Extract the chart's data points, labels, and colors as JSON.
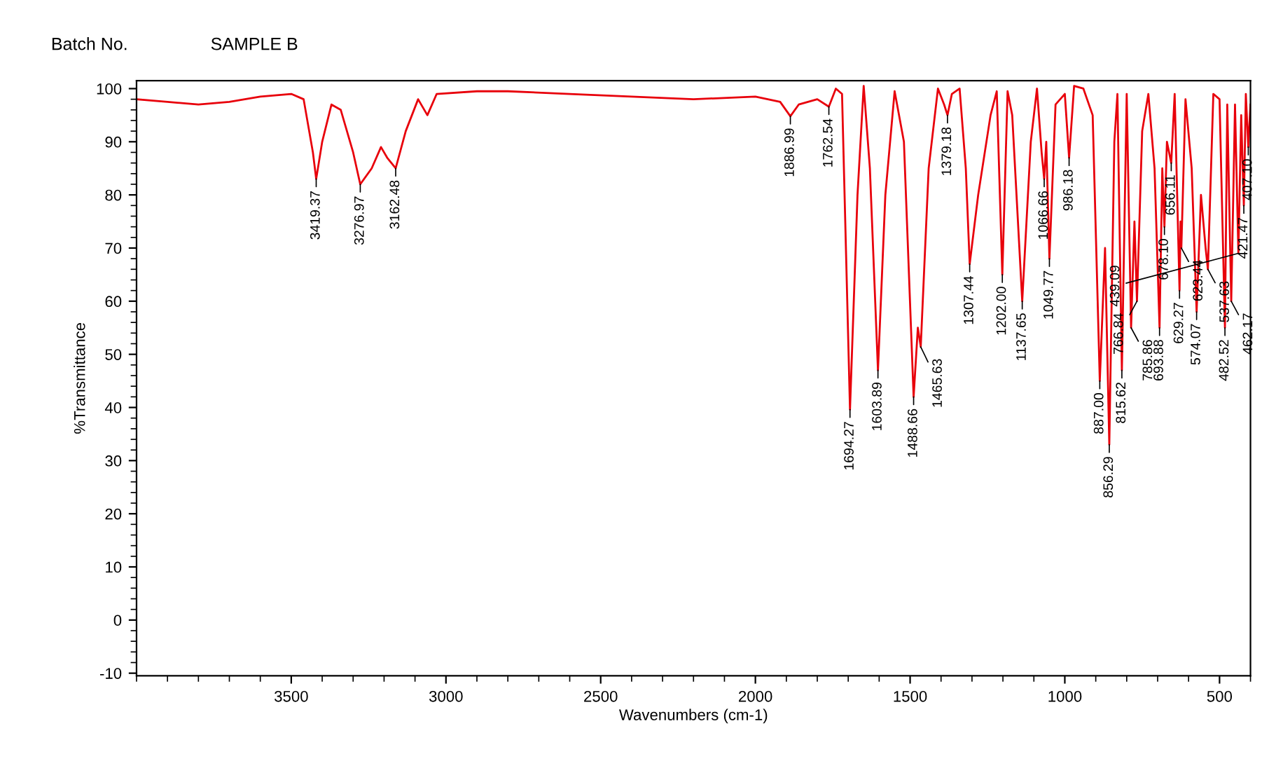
{
  "chart_data": {
    "type": "line",
    "title": "SAMPLE B",
    "xlabel": "Wavenumbers (cm-1)",
    "ylabel": "%Transmittance",
    "xlim": [
      4000,
      400
    ],
    "xticks": [
      3500,
      3000,
      2500,
      2000,
      1500,
      1000,
      500
    ],
    "ylim": [
      -10.5,
      101.5
    ],
    "yticks": [
      -10,
      0,
      10,
      20,
      30,
      40,
      50,
      60,
      70,
      80,
      90,
      100
    ],
    "grid": false,
    "legend": false,
    "line_style": "solid",
    "marker": "none",
    "series": [
      {
        "color": "#e8000b",
        "x": [
          4000,
          3900,
          3800,
          3700,
          3600,
          3500,
          3460,
          3430,
          3419.37,
          3400,
          3370,
          3340,
          3300,
          3276.97,
          3240,
          3210,
          3190,
          3162.48,
          3130,
          3090,
          3060,
          3030,
          2900,
          2800,
          2600,
          2400,
          2200,
          2000,
          1920,
          1886.99,
          1860,
          1800,
          1762.54,
          1740,
          1720,
          1694.27,
          1670,
          1650,
          1630,
          1603.89,
          1580,
          1550,
          1520,
          1488.66,
          1475,
          1465.63,
          1440,
          1410,
          1390,
          1379.18,
          1365,
          1340,
          1320,
          1307.44,
          1280,
          1240,
          1220,
          1202.0,
          1185,
          1170,
          1137.65,
          1110,
          1090,
          1075,
          1066.66,
          1060,
          1049.77,
          1030,
          1000,
          986.18,
          970,
          940,
          910,
          887,
          870,
          856.29,
          840,
          830,
          815.62,
          800,
          785.86,
          775,
          766.84,
          750,
          730,
          710,
          693.88,
          685,
          678.1,
          670,
          656.11,
          645,
          629.27,
          626,
          623.44,
          610,
          590,
          574.07,
          560,
          545,
          537.63,
          520,
          500,
          482.52,
          475,
          462.17,
          450,
          439.09,
          430,
          421.47,
          415,
          407.1,
          400
        ],
        "values": [
          98,
          97.5,
          97,
          97.5,
          98.5,
          99,
          98,
          88,
          83,
          90,
          97,
          96,
          88,
          82,
          85,
          89,
          87,
          85,
          92,
          98,
          95,
          99,
          99.5,
          99.5,
          99,
          98.5,
          98,
          98.5,
          97.5,
          94.8,
          97,
          98,
          96.6,
          100,
          99,
          39.6,
          80,
          100.5,
          85,
          47,
          80,
          99.5,
          90,
          42,
          55,
          51.4,
          85,
          100,
          97,
          95,
          99,
          100,
          85,
          67,
          80,
          95,
          99.5,
          65,
          99.5,
          95,
          60,
          90,
          100,
          88,
          83,
          90,
          68,
          97,
          99,
          87,
          100.5,
          100,
          95,
          45,
          70,
          33,
          90,
          99,
          47,
          99,
          55,
          75,
          60,
          92,
          99,
          85,
          55,
          85,
          74,
          90,
          86,
          99,
          62,
          75,
          70,
          98,
          85,
          58,
          80,
          70,
          66,
          99,
          98,
          55,
          97,
          60,
          97,
          69,
          95,
          78,
          99,
          89,
          97
        ]
      }
    ],
    "annotations": [
      "Batch No.",
      {
        "text": "3419.37",
        "x": 3419.37,
        "y": 83
      },
      {
        "text": "3276.97",
        "x": 3276.97,
        "y": 82
      },
      {
        "text": "3162.48",
        "x": 3162.48,
        "y": 85
      },
      {
        "text": "1886.99",
        "x": 1886.99,
        "y": 94.8
      },
      {
        "text": "1762.54",
        "x": 1762.54,
        "y": 96.6
      },
      {
        "text": "1694.27",
        "x": 1694.27,
        "y": 39.6
      },
      {
        "text": "1603.89",
        "x": 1603.89,
        "y": 47
      },
      {
        "text": "1488.66",
        "x": 1488.66,
        "y": 42
      },
      {
        "text": "1465.63",
        "x": 1465.63,
        "y": 51.4
      },
      {
        "text": "1379.18",
        "x": 1379.18,
        "y": 95
      },
      {
        "text": "1307.44",
        "x": 1307.44,
        "y": 67
      },
      {
        "text": "1202.00",
        "x": 1202.0,
        "y": 65
      },
      {
        "text": "1137.65",
        "x": 1137.65,
        "y": 60
      },
      {
        "text": "1066.66",
        "x": 1066.66,
        "y": 83
      },
      {
        "text": "1049.77",
        "x": 1049.77,
        "y": 68
      },
      {
        "text": "986.18",
        "x": 986.18,
        "y": 87
      },
      {
        "text": "887.00",
        "x": 887,
        "y": 45
      },
      {
        "text": "856.29",
        "x": 856.29,
        "y": 33
      },
      {
        "text": "815.62",
        "x": 815.62,
        "y": 47
      },
      {
        "text": "785.86",
        "x": 785.86,
        "y": 55
      },
      {
        "text": "766.84",
        "x": 766.84,
        "y": 60
      },
      {
        "text": "693.88",
        "x": 693.88,
        "y": 55
      },
      {
        "text": "678.10",
        "x": 678.1,
        "y": 74
      },
      {
        "text": "656.11",
        "x": 656.11,
        "y": 86
      },
      {
        "text": "629.27",
        "x": 629.27,
        "y": 62
      },
      {
        "text": "623.44",
        "x": 623.44,
        "y": 70
      },
      {
        "text": "574.07",
        "x": 574.07,
        "y": 58
      },
      {
        "text": "537.63",
        "x": 537.63,
        "y": 66
      },
      {
        "text": "482.52",
        "x": 482.52,
        "y": 55
      },
      {
        "text": "462.17",
        "x": 462.17,
        "y": 60
      },
      {
        "text": "439.09",
        "x": 439.09,
        "y": 69
      },
      {
        "text": "421.47",
        "x": 421.47,
        "y": 78
      },
      {
        "text": "407.10",
        "x": 407.1,
        "y": 89
      }
    ]
  }
}
